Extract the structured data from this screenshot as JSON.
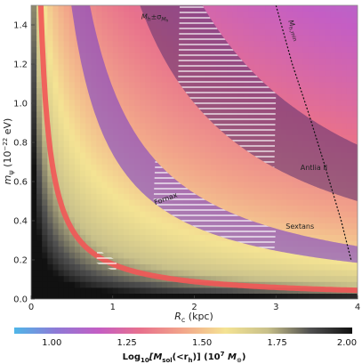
{
  "chart_data": {
    "type": "heatmap",
    "xlabel": "R_c (kpc)",
    "ylabel": "m_ψ (10^-22 eV)",
    "xlim": [
      0,
      4
    ],
    "ylim": [
      0,
      1.5
    ],
    "xticks": [
      "0",
      "1",
      "2",
      "3",
      "4"
    ],
    "yticks": [
      "0.0",
      "0.2",
      "0.4",
      "0.6",
      "0.8",
      "1.0",
      "1.2",
      "1.4"
    ],
    "colorbar": {
      "label_main": "Log",
      "label_sub": "10",
      "label_rest": "[M",
      "label_sol": "sol",
      "label_tail": "(<r",
      "label_h": "h",
      "label_end": ")] (10",
      "label_exp": "7",
      "label_unit": " M",
      "label_sun": "⊙",
      "label_close": ")",
      "range": [
        0.875,
        2.0
      ],
      "ticks": [
        "1.00",
        "1.25",
        "1.50",
        "1.75",
        "2.00"
      ],
      "colors": [
        "#4fb6e8",
        "#8e79d6",
        "#c45ec4",
        "#e8718c",
        "#f2a68a",
        "#f4e393",
        "#c8c08a",
        "#505050",
        "#111111"
      ]
    },
    "colormap_note": "",
    "bands": [
      {
        "name": "Fornax",
        "constant": 0.178,
        "width": 0.03,
        "color": "#f25757",
        "hatch_x": [
          0.8,
          1.05
        ]
      },
      {
        "name": "Sextans",
        "constant": 0.9,
        "width_lo": 0.74,
        "width_hi": 1.08,
        "color": "#7a3fc8",
        "hatch_x": [
          1.5,
          3.0
        ]
      },
      {
        "name": "Antlia II",
        "constant": 2.55,
        "width_lo": 2.0,
        "width_hi": 3.15,
        "color": "#5a3070",
        "hatch_x": [
          1.8,
          3.0
        ]
      },
      {
        "name": "M_h±σ_{M_h}",
        "label_main": "M",
        "label_sub": "h",
        "label_pm": "±σ",
        "label_sub2": "M",
        "label_sub3": "h"
      }
    ],
    "annotations": [
      {
        "text": "Fornax",
        "x": 1.52,
        "y": 0.48
      },
      {
        "text": "Sextans",
        "x": 3.12,
        "y": 0.36
      },
      {
        "text": "Antlia II",
        "x": 3.3,
        "y": 0.66
      },
      {
        "text": "M_h±σ_{M_h}",
        "x": 1.35,
        "y": 1.43
      },
      {
        "text": "M_{h,min}",
        "x": 3.15,
        "y": 1.42
      }
    ],
    "boundary_curve": {
      "name": "M_{h,min}",
      "style": "dotted",
      "points": [
        [
          3.0,
          1.5
        ],
        [
          3.2,
          1.2
        ],
        [
          3.4,
          0.95
        ],
        [
          3.6,
          0.68
        ],
        [
          3.8,
          0.4
        ],
        [
          3.92,
          0.2
        ]
      ]
    }
  },
  "labels": {
    "fornax": "Fornax",
    "sextans": "Sextans",
    "antlia": "Antlia II",
    "mh_main": "M",
    "mh_sub": "h",
    "mh_pm": "±σ",
    "mh_sigsub": "M",
    "mh_sigsub2": "h",
    "mhmin_main": "M",
    "mhmin_sub": "h,min",
    "x_main": "R",
    "x_sub": "c",
    "x_unit": " (kpc)",
    "y_main": "m",
    "y_sub": "ψ",
    "y_unit": " (10",
    "y_exp": "−22",
    "y_tail": " eV)"
  }
}
